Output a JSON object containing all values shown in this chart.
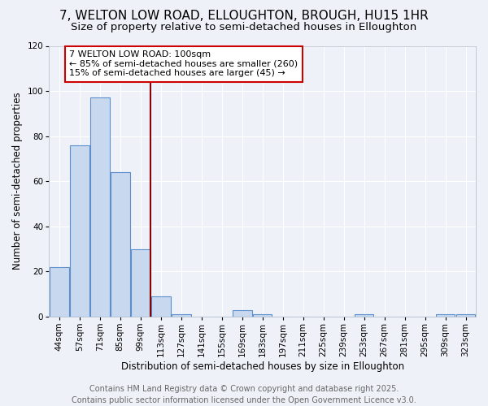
{
  "title_line1": "7, WELTON LOW ROAD, ELLOUGHTON, BROUGH, HU15 1HR",
  "title_line2": "Size of property relative to semi-detached houses in Elloughton",
  "categories": [
    "44sqm",
    "57sqm",
    "71sqm",
    "85sqm",
    "99sqm",
    "113sqm",
    "127sqm",
    "141sqm",
    "155sqm",
    "169sqm",
    "183sqm",
    "197sqm",
    "211sqm",
    "225sqm",
    "239sqm",
    "253sqm",
    "267sqm",
    "281sqm",
    "295sqm",
    "309sqm",
    "323sqm"
  ],
  "values": [
    22,
    76,
    97,
    64,
    30,
    9,
    1,
    0,
    0,
    3,
    1,
    0,
    0,
    0,
    0,
    1,
    0,
    0,
    0,
    1,
    1
  ],
  "bar_color": "#c8d9ef",
  "bar_edge_color": "#5b8fcc",
  "vline_x_index": 4,
  "vline_color": "#8b0000",
  "annotation_title": "7 WELTON LOW ROAD: 100sqm",
  "annotation_line2": "← 85% of semi-detached houses are smaller (260)",
  "annotation_line3": "15% of semi-detached houses are larger (45) →",
  "annotation_box_color": "#ffffff",
  "annotation_border_color": "#cc0000",
  "xlabel": "Distribution of semi-detached houses by size in Elloughton",
  "ylabel": "Number of semi-detached properties",
  "ylim": [
    0,
    120
  ],
  "yticks": [
    0,
    20,
    40,
    60,
    80,
    100,
    120
  ],
  "footer_line1": "Contains HM Land Registry data © Crown copyright and database right 2025.",
  "footer_line2": "Contains public sector information licensed under the Open Government Licence v3.0.",
  "bg_color": "#eef2f8",
  "grid_color": "#ffffff",
  "title_fontsize": 11,
  "subtitle_fontsize": 9.5,
  "axis_label_fontsize": 8.5,
  "tick_fontsize": 7.5,
  "annotation_fontsize": 8,
  "footer_fontsize": 7
}
